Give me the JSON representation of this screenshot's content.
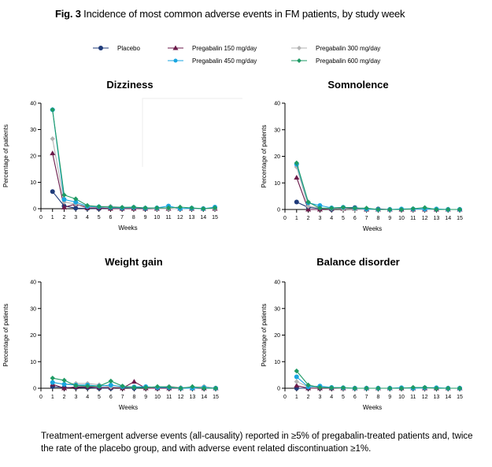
{
  "figure": {
    "label": "Fig. 3",
    "title": "Incidence of most common adverse events in FM patients, by study week"
  },
  "legend": [
    {
      "name": "Placebo",
      "color": "#1f3b7a",
      "marker": "circle"
    },
    {
      "name": "Pregabalin 150 mg/day",
      "color": "#6b1a4a",
      "marker": "triangle"
    },
    {
      "name": "Pregabalin 300 mg/day",
      "color": "#b3b3b3",
      "marker": "diamond"
    },
    {
      "name": "Pregabalin 450 mg/day",
      "color": "#1aa6e0",
      "marker": "circle"
    },
    {
      "name": "Pregabalin 600 mg/day",
      "color": "#1e9a64",
      "marker": "diamond"
    }
  ],
  "caption": "Treatment-emergent adverse events (all-causality) reported in ≥5% of pregabalin-treated patients and, twice the rate of the placebo group, and with adverse event related discontinuation ≥1%.",
  "chart_data": [
    {
      "type": "line",
      "title": "Dizziness",
      "xlabel": "Weeks",
      "ylabel": "Percentage of patients",
      "xlim": [
        0,
        15
      ],
      "ylim": [
        0,
        40
      ],
      "x_ticks": [
        "0",
        "1",
        "2",
        "3",
        "4",
        "5",
        "6",
        "7",
        "8",
        "9",
        "10",
        "11",
        "12",
        "13",
        "14",
        "15"
      ],
      "y_ticks": [
        "0",
        "10",
        "20",
        "30",
        "40"
      ],
      "grid": false,
      "x": [
        1,
        2,
        3,
        4,
        5,
        6,
        7,
        8,
        9,
        10,
        11,
        12,
        13,
        14,
        15
      ],
      "series": [
        {
          "name": "Placebo",
          "values": [
            6.5,
            1.0,
            0.2,
            0.1,
            0.0,
            0.1,
            0.0,
            0.1,
            0.0,
            0.0,
            0.0,
            0.0,
            0.0,
            0.0,
            0.0
          ]
        },
        {
          "name": "Pregabalin 150 mg/day",
          "values": [
            21.0,
            0.5,
            1.8,
            0.3,
            0.3,
            0.0,
            0.0,
            0.0,
            0.0,
            0.0,
            0.0,
            0.0,
            0.0,
            0.0,
            0.0
          ]
        },
        {
          "name": "Pregabalin 300 mg/day",
          "values": [
            26.5,
            2.5,
            1.8,
            0.8,
            0.8,
            0.9,
            0.5,
            0.3,
            0.3,
            0.0,
            0.0,
            0.0,
            0.0,
            0.0,
            0.0
          ]
        },
        {
          "name": "Pregabalin 450 mg/day",
          "values": [
            37.5,
            3.5,
            2.5,
            0.9,
            0.7,
            0.5,
            0.3,
            0.5,
            0.2,
            0.3,
            1.0,
            0.0,
            0.2,
            0.0,
            0.6
          ]
        },
        {
          "name": "Pregabalin 600 mg/day",
          "values": [
            37.5,
            5.2,
            3.7,
            1.2,
            0.8,
            0.6,
            0.5,
            0.6,
            0.3,
            0.3,
            0.3,
            0.6,
            0.3,
            0.0,
            0.3
          ]
        }
      ]
    },
    {
      "type": "line",
      "title": "Somnolence",
      "xlabel": "Weeks",
      "ylabel": "Percentage of patients",
      "xlim": [
        0,
        15
      ],
      "ylim": [
        0,
        40
      ],
      "x_ticks": [
        "0",
        "1",
        "2",
        "3",
        "4",
        "5",
        "6",
        "7",
        "8",
        "9",
        "10",
        "11",
        "12",
        "13",
        "14",
        "15"
      ],
      "y_ticks": [
        "0",
        "10",
        "20",
        "30",
        "40"
      ],
      "grid": false,
      "x": [
        1,
        2,
        3,
        4,
        5,
        6,
        7,
        8,
        9,
        10,
        11,
        12,
        13,
        14,
        15
      ],
      "series": [
        {
          "name": "Placebo",
          "values": [
            2.8,
            0.8,
            0.3,
            0.0,
            0.7,
            0.7,
            0.0,
            0.2,
            0.0,
            0.0,
            0.0,
            0.0,
            0.0,
            0.0,
            0.0
          ]
        },
        {
          "name": "Pregabalin 150 mg/day",
          "values": [
            12.0,
            0.0,
            0.0,
            0.3,
            0.3,
            0.3,
            0.0,
            0.0,
            0.0,
            0.0,
            0.0,
            0.0,
            0.0,
            0.0,
            0.0
          ]
        },
        {
          "name": "Pregabalin 300 mg/day",
          "values": [
            16.0,
            1.2,
            0.5,
            0.3,
            0.2,
            0.0,
            0.0,
            0.0,
            0.0,
            0.0,
            0.0,
            0.0,
            0.0,
            0.0,
            0.0
          ]
        },
        {
          "name": "Pregabalin 450 mg/day",
          "values": [
            17.0,
            2.5,
            1.5,
            0.6,
            0.8,
            0.5,
            0.2,
            0.0,
            0.0,
            0.2,
            0.2,
            0.2,
            0.2,
            0.0,
            0.0
          ]
        },
        {
          "name": "Pregabalin 600 mg/day",
          "values": [
            17.5,
            2.8,
            0.5,
            0.5,
            0.8,
            0.5,
            0.5,
            0.0,
            0.0,
            0.0,
            0.3,
            0.7,
            0.0,
            0.0,
            0.0
          ]
        }
      ]
    },
    {
      "type": "line",
      "title": "Weight gain",
      "xlabel": "Weeks",
      "ylabel": "Percentage of patients",
      "xlim": [
        0,
        15
      ],
      "ylim": [
        0,
        40
      ],
      "x_ticks": [
        "0",
        "1",
        "2",
        "3",
        "4",
        "5",
        "6",
        "7",
        "8",
        "9",
        "10",
        "11",
        "12",
        "13",
        "14",
        "15"
      ],
      "y_ticks": [
        "0",
        "10",
        "20",
        "30",
        "40"
      ],
      "grid": false,
      "x": [
        1,
        2,
        3,
        4,
        5,
        6,
        7,
        8,
        9,
        10,
        11,
        12,
        13,
        14,
        15
      ],
      "series": [
        {
          "name": "Placebo",
          "values": [
            0.6,
            0.3,
            0.3,
            0.2,
            0.0,
            0.0,
            0.3,
            0.0,
            0.3,
            0.0,
            0.0,
            0.0,
            0.0,
            0.0,
            0.0
          ]
        },
        {
          "name": "Pregabalin 150 mg/day",
          "values": [
            1.5,
            0.0,
            0.5,
            0.5,
            0.3,
            0.3,
            0.0,
            2.5,
            0.0,
            0.0,
            0.0,
            0.0,
            0.0,
            0.0,
            0.0
          ]
        },
        {
          "name": "Pregabalin 300 mg/day",
          "values": [
            2.2,
            1.5,
            1.8,
            1.8,
            1.3,
            0.5,
            0.5,
            0.3,
            0.3,
            0.3,
            0.7,
            0.3,
            0.3,
            0.7,
            0.0
          ]
        },
        {
          "name": "Pregabalin 450 mg/day",
          "values": [
            2.2,
            1.5,
            1.2,
            1.2,
            0.8,
            1.2,
            0.6,
            0.5,
            0.6,
            0.3,
            0.3,
            0.0,
            0.0,
            0.3,
            0.0
          ]
        },
        {
          "name": "Pregabalin 600 mg/day",
          "values": [
            3.8,
            3.0,
            1.0,
            0.8,
            0.8,
            2.7,
            0.8,
            0.3,
            0.3,
            0.6,
            0.5,
            0.0,
            0.6,
            0.0,
            0.0
          ]
        }
      ]
    },
    {
      "type": "line",
      "title": "Balance disorder",
      "xlabel": "Weeks",
      "ylabel": "Percentage of patients",
      "xlim": [
        0,
        15
      ],
      "ylim": [
        0,
        40
      ],
      "x_ticks": [
        "0",
        "1",
        "2",
        "3",
        "4",
        "5",
        "6",
        "7",
        "8",
        "9",
        "10",
        "11",
        "12",
        "13",
        "14",
        "15"
      ],
      "y_ticks": [
        "0",
        "10",
        "20",
        "30",
        "40"
      ],
      "grid": false,
      "x": [
        1,
        2,
        3,
        4,
        5,
        6,
        7,
        8,
        9,
        10,
        11,
        12,
        13,
        14,
        15
      ],
      "series": [
        {
          "name": "Placebo",
          "values": [
            0.0,
            0.0,
            0.0,
            0.0,
            0.0,
            0.0,
            0.0,
            0.0,
            0.0,
            0.0,
            0.0,
            0.0,
            0.0,
            0.0,
            0.0
          ]
        },
        {
          "name": "Pregabalin 150 mg/day",
          "values": [
            1.0,
            0.0,
            0.0,
            0.0,
            0.0,
            0.0,
            0.0,
            0.0,
            0.0,
            0.0,
            0.0,
            0.0,
            0.0,
            0.0,
            0.0
          ]
        },
        {
          "name": "Pregabalin 300 mg/day",
          "values": [
            2.5,
            0.5,
            0.3,
            0.2,
            0.0,
            0.0,
            0.0,
            0.0,
            0.0,
            0.0,
            0.0,
            0.0,
            0.0,
            0.0,
            0.0
          ]
        },
        {
          "name": "Pregabalin 450 mg/day",
          "values": [
            4.3,
            0.5,
            0.8,
            0.3,
            0.2,
            0.0,
            0.0,
            0.0,
            0.0,
            0.2,
            0.0,
            0.2,
            0.2,
            0.0,
            0.0
          ]
        },
        {
          "name": "Pregabalin 600 mg/day",
          "values": [
            6.5,
            1.2,
            0.3,
            0.2,
            0.2,
            0.0,
            0.0,
            0.0,
            0.0,
            0.0,
            0.3,
            0.3,
            0.0,
            0.0,
            0.0
          ]
        }
      ]
    }
  ]
}
